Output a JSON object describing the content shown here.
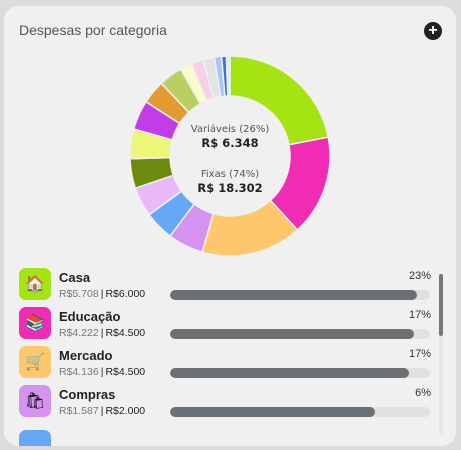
{
  "header": {
    "title": "Despesas por categoria",
    "add_icon": "plus-circle-icon"
  },
  "chart_data": {
    "type": "pie",
    "variant": "donut",
    "values": [
      23,
      17,
      17,
      6,
      5,
      5,
      5,
      5,
      5,
      4,
      4,
      2,
      2,
      2,
      1.2,
      0.8,
      0.6
    ],
    "colors": [
      "#a6e312",
      "#f02cb4",
      "#ffc76b",
      "#d493ee",
      "#64a8f7",
      "#e9b8f7",
      "#6c8b0c",
      "#eef67a",
      "#c23de6",
      "#e19b30",
      "#b9cf62",
      "#fbfbc9",
      "#f8cfe4",
      "#e3e3e3",
      "#a7c6f6",
      "#3f6ed4",
      "#d7edf7"
    ],
    "center": {
      "variable_label": "Variáveis (26%)",
      "variable_value": "R$ 6.348",
      "fixed_label": "Fixas (74%)",
      "fixed_value": "R$ 18.302"
    }
  },
  "categories": [
    {
      "name": "Casa",
      "spent": "R$5.708",
      "limit": "R$6.000",
      "percent": "23%",
      "progress": 95,
      "color": "#a6e312",
      "icon": "house-icon",
      "glyph": "🏠"
    },
    {
      "name": "Educação",
      "spent": "R$4.222",
      "limit": "R$4.500",
      "percent": "17%",
      "progress": 94,
      "color": "#f02cb4",
      "icon": "books-icon",
      "glyph": "📚"
    },
    {
      "name": "Mercado",
      "spent": "R$4.136",
      "limit": "R$4.500",
      "percent": "17%",
      "progress": 92,
      "color": "#ffc76b",
      "icon": "shopping-cart-icon",
      "glyph": "🛒"
    },
    {
      "name": "Compras",
      "spent": "R$1.587",
      "limit": "R$2.000",
      "percent": "6%",
      "progress": 79,
      "color": "#d493ee",
      "icon": "shopping-bags-icon",
      "glyph": "🛍"
    }
  ],
  "next_category_color": "#64a8f7",
  "amount_separator": "|"
}
